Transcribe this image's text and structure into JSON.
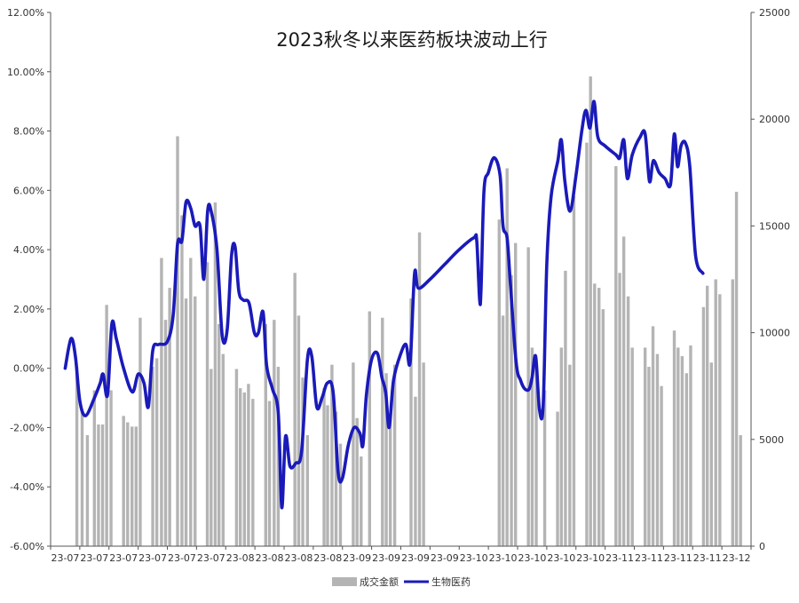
{
  "chart_data": {
    "type": "bar+line",
    "title": "2023秋冬以来医药板块波动上行",
    "legend_position": "bottom-center",
    "grid": false,
    "x_tick_labels": [
      "23-07",
      "23-07",
      "23-07",
      "23-07",
      "23-07",
      "23-07",
      "23-08",
      "23-08",
      "23-08",
      "23-08",
      "23-09",
      "23-09",
      "23-09",
      "23-09",
      "23-10",
      "23-10",
      "23-10",
      "23-10",
      "23-10",
      "23-11",
      "23-11",
      "23-11",
      "23-11",
      "23-12"
    ],
    "y_left": {
      "ticks": [
        "12.00%",
        "10.00%",
        "8.00%",
        "6.00%",
        "4.00%",
        "2.00%",
        "0.00%",
        "-2.00%",
        "-4.00%",
        "-6.00%"
      ],
      "range": [
        -6,
        12
      ],
      "unit": "%"
    },
    "y_right": {
      "ticks": [
        "25000",
        "20000",
        "15000",
        "10000",
        "5000",
        "0"
      ],
      "range": [
        0,
        25000
      ]
    },
    "series": [
      {
        "name": "成交金额",
        "kind": "bar",
        "axis": "right",
        "color": "#b4b4b4",
        "points": [
          [
            0.4,
            8400
          ],
          [
            0.58,
            6400
          ],
          [
            0.76,
            5200
          ],
          [
            1.0,
            7300
          ],
          [
            1.14,
            5700
          ],
          [
            1.28,
            5700
          ],
          [
            1.42,
            11300
          ],
          [
            1.57,
            7300
          ],
          [
            2.0,
            6100
          ],
          [
            2.14,
            5800
          ],
          [
            2.29,
            5600
          ],
          [
            2.43,
            5600
          ],
          [
            2.57,
            10700
          ],
          [
            3.0,
            8400
          ],
          [
            3.14,
            8800
          ],
          [
            3.3,
            13500
          ],
          [
            3.44,
            10600
          ],
          [
            3.58,
            12100
          ],
          [
            3.85,
            19200
          ],
          [
            4.0,
            15500
          ],
          [
            4.14,
            11600
          ],
          [
            4.3,
            13500
          ],
          [
            4.45,
            11700
          ],
          [
            4.87,
            13300
          ],
          [
            5.0,
            8300
          ],
          [
            5.14,
            16100
          ],
          [
            5.27,
            10400
          ],
          [
            5.41,
            9000
          ],
          [
            5.87,
            8300
          ],
          [
            6.0,
            7400
          ],
          [
            6.14,
            7200
          ],
          [
            6.28,
            7600
          ],
          [
            6.43,
            6900
          ],
          [
            6.87,
            10400
          ],
          [
            7.0,
            6800
          ],
          [
            7.16,
            10600
          ],
          [
            7.3,
            8400
          ],
          [
            7.87,
            12800
          ],
          [
            8.0,
            10800
          ],
          [
            8.14,
            7900
          ],
          [
            8.3,
            5200
          ],
          [
            8.87,
            7400
          ],
          [
            8.99,
            6600
          ],
          [
            9.14,
            8500
          ],
          [
            9.28,
            6300
          ],
          [
            9.43,
            4800
          ],
          [
            9.87,
            8600
          ],
          [
            10.0,
            6000
          ],
          [
            10.14,
            4200
          ],
          [
            10.43,
            11000
          ],
          [
            10.87,
            10700
          ],
          [
            11.0,
            8100
          ],
          [
            11.14,
            6000
          ],
          [
            11.29,
            8500
          ],
          [
            11.85,
            11600
          ],
          [
            12.0,
            7000
          ],
          [
            12.14,
            14700
          ],
          [
            12.28,
            8600
          ],
          [
            14.87,
            15300
          ],
          [
            15.0,
            10800
          ],
          [
            15.14,
            17700
          ],
          [
            15.29,
            12700
          ],
          [
            15.43,
            14200
          ],
          [
            15.87,
            14000
          ],
          [
            16.0,
            9300
          ],
          [
            16.14,
            8400
          ],
          [
            16.43,
            7300
          ],
          [
            16.87,
            6300
          ],
          [
            17.0,
            9300
          ],
          [
            17.14,
            12900
          ],
          [
            17.29,
            8500
          ],
          [
            17.43,
            16400
          ],
          [
            17.87,
            18900
          ],
          [
            18.0,
            22000
          ],
          [
            18.14,
            12300
          ],
          [
            18.29,
            12100
          ],
          [
            18.43,
            11100
          ],
          [
            18.87,
            17800
          ],
          [
            19.0,
            12800
          ],
          [
            19.14,
            14500
          ],
          [
            19.29,
            11700
          ],
          [
            19.43,
            9300
          ],
          [
            19.87,
            9300
          ],
          [
            20.0,
            8400
          ],
          [
            20.14,
            10300
          ],
          [
            20.29,
            9000
          ],
          [
            20.43,
            7500
          ],
          [
            20.87,
            10100
          ],
          [
            21.0,
            9300
          ],
          [
            21.14,
            8900
          ],
          [
            21.29,
            8100
          ],
          [
            21.43,
            9400
          ],
          [
            21.87,
            11200
          ],
          [
            22.0,
            12200
          ],
          [
            22.14,
            8600
          ],
          [
            22.29,
            12500
          ],
          [
            22.43,
            11800
          ],
          [
            22.87,
            12500
          ],
          [
            23.0,
            16600
          ],
          [
            23.14,
            5200
          ]
        ]
      },
      {
        "name": "生物医药",
        "kind": "line",
        "axis": "left",
        "color": "#1a1aba",
        "points": [
          [
            0.0,
            0.0
          ],
          [
            0.2,
            1.0
          ],
          [
            0.35,
            0.4
          ],
          [
            0.5,
            -1.1
          ],
          [
            0.7,
            -1.6
          ],
          [
            1.0,
            -1.0
          ],
          [
            1.2,
            -0.5
          ],
          [
            1.3,
            -0.2
          ],
          [
            1.45,
            -0.9
          ],
          [
            1.6,
            1.5
          ],
          [
            1.75,
            1.0
          ],
          [
            2.0,
            0.0
          ],
          [
            2.3,
            -0.8
          ],
          [
            2.5,
            -0.2
          ],
          [
            2.7,
            -0.5
          ],
          [
            2.85,
            -1.3
          ],
          [
            3.0,
            0.6
          ],
          [
            3.2,
            0.8
          ],
          [
            3.5,
            0.9
          ],
          [
            3.7,
            1.8
          ],
          [
            3.85,
            4.2
          ],
          [
            4.0,
            4.3
          ],
          [
            4.14,
            5.6
          ],
          [
            4.3,
            5.4
          ],
          [
            4.45,
            4.8
          ],
          [
            4.62,
            4.8
          ],
          [
            4.75,
            3.0
          ],
          [
            4.88,
            5.3
          ],
          [
            5.0,
            5.3
          ],
          [
            5.2,
            4.0
          ],
          [
            5.38,
            1.1
          ],
          [
            5.55,
            1.3
          ],
          [
            5.7,
            3.8
          ],
          [
            5.82,
            4.1
          ],
          [
            5.95,
            2.6
          ],
          [
            6.1,
            2.3
          ],
          [
            6.3,
            2.2
          ],
          [
            6.48,
            1.2
          ],
          [
            6.62,
            1.2
          ],
          [
            6.78,
            1.9
          ],
          [
            6.9,
            0.1
          ],
          [
            7.1,
            -0.7
          ],
          [
            7.3,
            -1.5
          ],
          [
            7.42,
            -4.7
          ],
          [
            7.55,
            -2.3
          ],
          [
            7.7,
            -3.3
          ],
          [
            7.9,
            -3.2
          ],
          [
            8.1,
            -2.8
          ],
          [
            8.3,
            0.3
          ],
          [
            8.45,
            0.4
          ],
          [
            8.62,
            -1.3
          ],
          [
            8.8,
            -1.0
          ],
          [
            8.98,
            -0.5
          ],
          [
            9.18,
            -0.8
          ],
          [
            9.35,
            -3.5
          ],
          [
            9.5,
            -3.7
          ],
          [
            9.7,
            -2.6
          ],
          [
            9.9,
            -2.0
          ],
          [
            10.1,
            -2.2
          ],
          [
            10.2,
            -2.6
          ],
          [
            10.32,
            -0.9
          ],
          [
            10.5,
            0.3
          ],
          [
            10.7,
            0.5
          ],
          [
            10.85,
            -0.3
          ],
          [
            10.98,
            -0.8
          ],
          [
            11.1,
            -2.0
          ],
          [
            11.25,
            -0.4
          ],
          [
            11.5,
            0.5
          ],
          [
            11.68,
            0.8
          ],
          [
            11.82,
            0.2
          ],
          [
            11.97,
            3.2
          ],
          [
            12.1,
            2.7
          ],
          [
            12.5,
            3.0
          ],
          [
            13.0,
            3.5
          ],
          [
            13.5,
            4.0
          ],
          [
            14.0,
            4.4
          ],
          [
            14.1,
            4.3
          ],
          [
            14.2,
            2.3
          ],
          [
            14.25,
            2.7
          ],
          [
            14.35,
            6.0
          ],
          [
            14.5,
            6.6
          ],
          [
            14.7,
            7.1
          ],
          [
            14.9,
            6.5
          ],
          [
            15.0,
            4.8
          ],
          [
            15.14,
            4.4
          ],
          [
            15.25,
            2.9
          ],
          [
            15.45,
            0.2
          ],
          [
            15.6,
            -0.4
          ],
          [
            15.75,
            -0.7
          ],
          [
            15.9,
            -0.7
          ],
          [
            16.0,
            -0.3
          ],
          [
            16.12,
            0.4
          ],
          [
            16.25,
            -1.4
          ],
          [
            16.38,
            -1.2
          ],
          [
            16.5,
            3.5
          ],
          [
            16.65,
            5.8
          ],
          [
            16.88,
            7.0
          ],
          [
            17.0,
            7.7
          ],
          [
            17.12,
            6.3
          ],
          [
            17.3,
            5.3
          ],
          [
            17.5,
            6.5
          ],
          [
            17.7,
            8.0
          ],
          [
            17.84,
            8.7
          ],
          [
            17.98,
            8.1
          ],
          [
            18.12,
            9.0
          ],
          [
            18.25,
            7.8
          ],
          [
            18.5,
            7.5
          ],
          [
            18.87,
            7.2
          ],
          [
            19.0,
            7.1
          ],
          [
            19.14,
            7.7
          ],
          [
            19.26,
            6.4
          ],
          [
            19.43,
            7.2
          ],
          [
            19.7,
            7.8
          ],
          [
            19.87,
            7.9
          ],
          [
            20.02,
            6.3
          ],
          [
            20.15,
            7.0
          ],
          [
            20.35,
            6.6
          ],
          [
            20.55,
            6.4
          ],
          [
            20.74,
            6.2
          ],
          [
            20.87,
            7.9
          ],
          [
            20.98,
            6.8
          ],
          [
            21.1,
            7.5
          ],
          [
            21.25,
            7.6
          ],
          [
            21.4,
            6.8
          ],
          [
            21.6,
            3.8
          ],
          [
            21.85,
            3.2
          ]
        ]
      }
    ]
  }
}
